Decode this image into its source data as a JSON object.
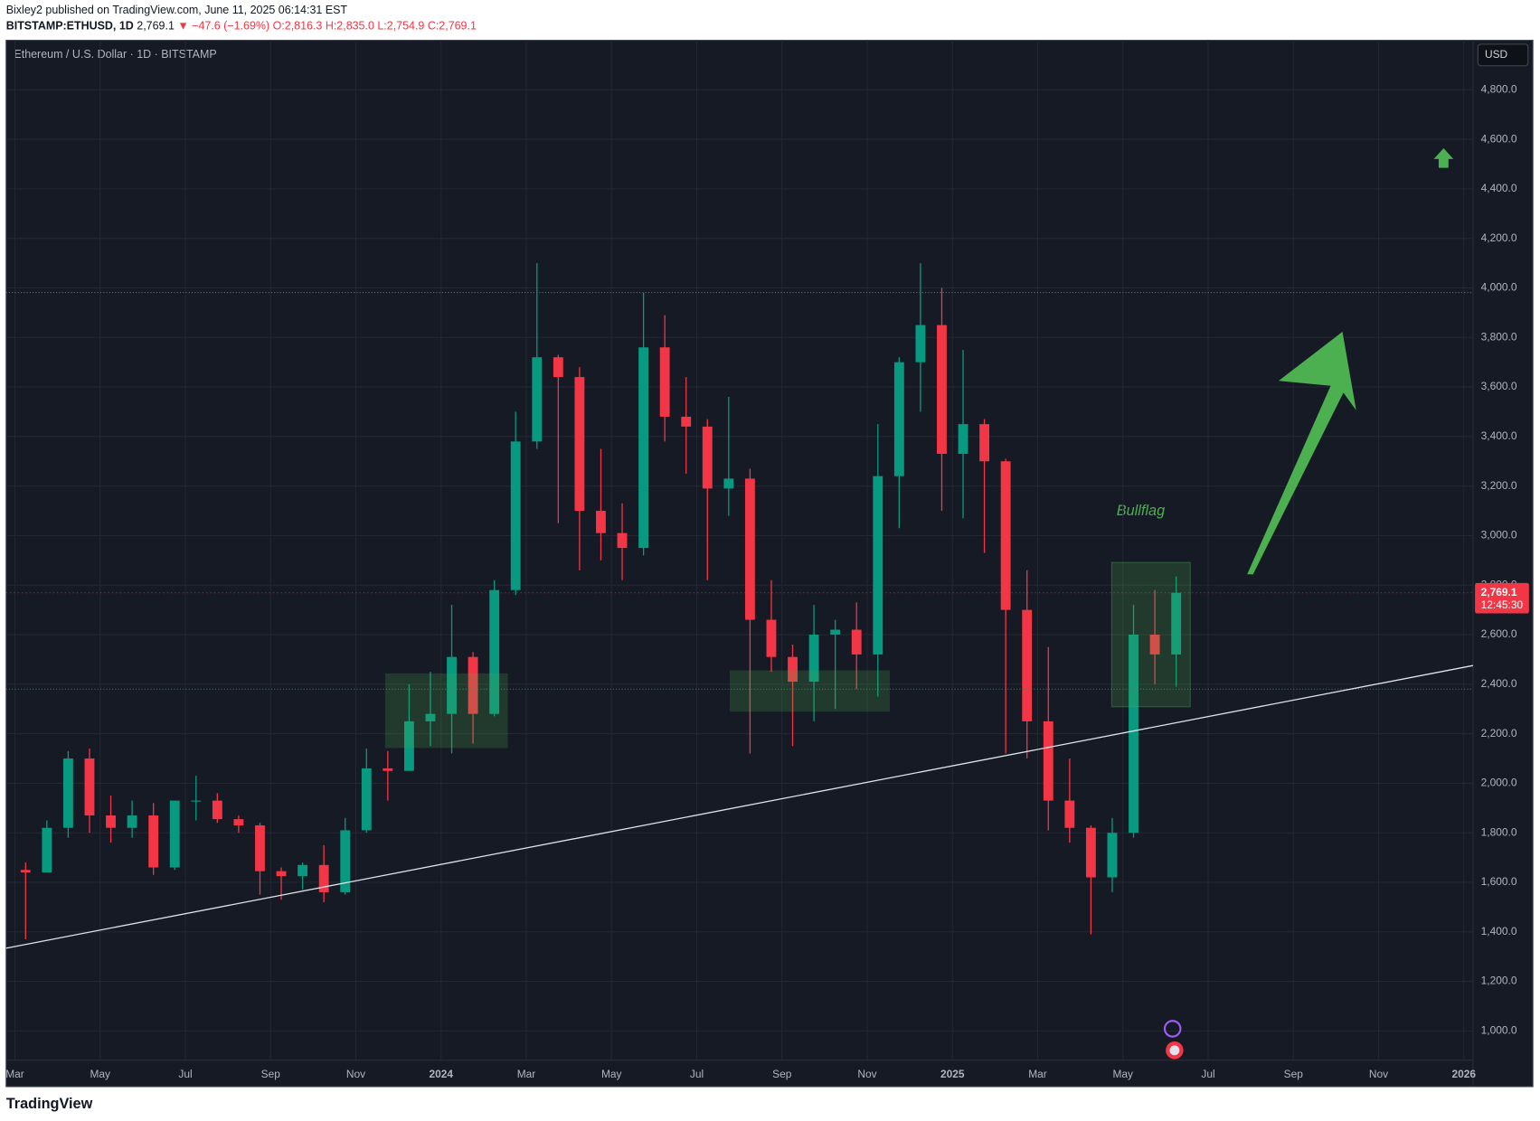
{
  "header": {
    "publisher": "Bixley2 published on TradingView.com, June 11, 2025 06:14:31 EST",
    "symbol": "BITSTAMP:ETHUSD, 1D",
    "price": "2,769.1",
    "change": "▼ −47.6 (−1.69%)",
    "ohlc": "O:2,816.3 H:2,835.0 L:2,754.9 C:2,769.1"
  },
  "footer": {
    "brand": "TradingView"
  },
  "chart_data": {
    "type": "candlestick",
    "title": "Ethereum / U.S. Dollar · 1D · BITSTAMP",
    "currency": "USD",
    "annotation": "Bullflag",
    "last_price": {
      "value": 2769.1,
      "label": "2,769.1"
    },
    "countdown": "12:45:30",
    "up_color": "#089981",
    "down_color": "#f23645",
    "categories": [
      "Mar",
      null,
      null,
      null,
      "May",
      null,
      null,
      null,
      "Jul",
      null,
      null,
      null,
      "Sep",
      null,
      null,
      null,
      "Nov",
      null,
      null,
      null,
      "2024",
      null,
      null,
      null,
      "Mar",
      null,
      null,
      null,
      "May",
      null,
      null,
      null,
      "Jul",
      null,
      null,
      null,
      "Sep",
      null,
      null,
      null,
      "Nov",
      null,
      null,
      null,
      "2025",
      null,
      null,
      null,
      "Mar",
      null,
      null,
      null,
      "May",
      null,
      null,
      null,
      "Jul",
      null,
      null,
      null,
      "Sep",
      null,
      null,
      null,
      "Nov",
      null,
      null,
      null,
      "2026"
    ],
    "open": [
      1650,
      1640,
      1820,
      2100,
      1870,
      1820,
      1870,
      1660,
      1930,
      1930,
      1855,
      1830,
      1645,
      1625,
      1670,
      1560,
      1810,
      2060,
      2050,
      2250,
      2280,
      2510,
      2280,
      2780,
      3380,
      3720,
      3640,
      3100,
      3010,
      2950,
      3760,
      3480,
      3440,
      3190,
      3230,
      2660,
      2510,
      2410,
      2600,
      2620,
      2520,
      3240,
      3700,
      3850,
      3330,
      3450,
      3300,
      2700,
      2250,
      1930,
      1820,
      1620,
      1800,
      2600,
      2520,
      null,
      null,
      null,
      null,
      null,
      null,
      null,
      null,
      null,
      null,
      null,
      null,
      null,
      null
    ],
    "high": [
      1680,
      1850,
      2130,
      2140,
      1950,
      1930,
      1920,
      1930,
      2030,
      1960,
      1870,
      1840,
      1660,
      1680,
      1750,
      1860,
      2140,
      2130,
      2400,
      2450,
      2720,
      2530,
      2820,
      3500,
      4100,
      3730,
      3680,
      3350,
      3130,
      3980,
      3890,
      3640,
      3470,
      3560,
      3270,
      2820,
      2560,
      2720,
      2660,
      2730,
      3450,
      3720,
      4100,
      4000,
      3750,
      3470,
      3310,
      2860,
      2550,
      2100,
      1830,
      1860,
      2720,
      2780,
      2835,
      null,
      null,
      null,
      null,
      null,
      null,
      null,
      null,
      null,
      null,
      null,
      null,
      null,
      null
    ],
    "low": [
      1370,
      1640,
      1780,
      1800,
      1760,
      1780,
      1630,
      1650,
      1850,
      1840,
      1800,
      1550,
      1530,
      1570,
      1520,
      1550,
      1800,
      1930,
      2050,
      2150,
      2120,
      2160,
      2270,
      2760,
      3350,
      3050,
      2860,
      2900,
      2820,
      2920,
      3380,
      3250,
      2820,
      3080,
      2120,
      2450,
      2150,
      2250,
      2300,
      2380,
      2350,
      3030,
      3500,
      3100,
      3070,
      2930,
      2120,
      2100,
      1810,
      1760,
      1390,
      1560,
      1780,
      2400,
      2390,
      null,
      null,
      null,
      null,
      null,
      null,
      null,
      null,
      null,
      null,
      null,
      null,
      null,
      null
    ],
    "close": [
      1640,
      1820,
      2100,
      1870,
      1820,
      1870,
      1660,
      1930,
      1930,
      1855,
      1830,
      1645,
      1625,
      1670,
      1560,
      1810,
      2060,
      2050,
      2250,
      2280,
      2510,
      2280,
      2780,
      3380,
      3720,
      3640,
      3100,
      3010,
      2950,
      3760,
      3480,
      3440,
      3190,
      3230,
      2660,
      2510,
      2410,
      2600,
      2620,
      2520,
      3240,
      3700,
      3850,
      3330,
      3450,
      3300,
      2700,
      2250,
      1930,
      1820,
      1620,
      1800,
      2600,
      2520,
      2769.1,
      null,
      null,
      null,
      null,
      null,
      null,
      null,
      null,
      null,
      null,
      null,
      null,
      null,
      null
    ],
    "ylim": [
      775,
      5000
    ],
    "yticks": [
      {
        "value": 1000,
        "label": "1,000.0"
      },
      {
        "value": 1200,
        "label": "1,200.0"
      },
      {
        "value": 1400,
        "label": "1,400.0"
      },
      {
        "value": 1600,
        "label": "1,600.0"
      },
      {
        "value": 1800,
        "label": "1,800.0"
      },
      {
        "value": 2000,
        "label": "2,000.0"
      },
      {
        "value": 2200,
        "label": "2,200.0"
      },
      {
        "value": 2400,
        "label": "2,400.0"
      },
      {
        "value": 2600,
        "label": "2,600.0"
      },
      {
        "value": 2800,
        "label": "2,800.0"
      },
      {
        "value": 3000,
        "label": "3,000.0"
      },
      {
        "value": 3200,
        "label": "3,200.0"
      },
      {
        "value": 3400,
        "label": "3,400.0"
      },
      {
        "value": 3600,
        "label": "3,600.0"
      },
      {
        "value": 3800,
        "label": "3,800.0"
      },
      {
        "value": 4000,
        "label": "4,000.0"
      },
      {
        "value": 4200,
        "label": "4,200.0"
      },
      {
        "value": 4400,
        "label": "4,400.0"
      },
      {
        "value": 4600,
        "label": "4,600.0"
      },
      {
        "value": 4800,
        "label": "4,800.0"
      }
    ],
    "grid": true
  }
}
